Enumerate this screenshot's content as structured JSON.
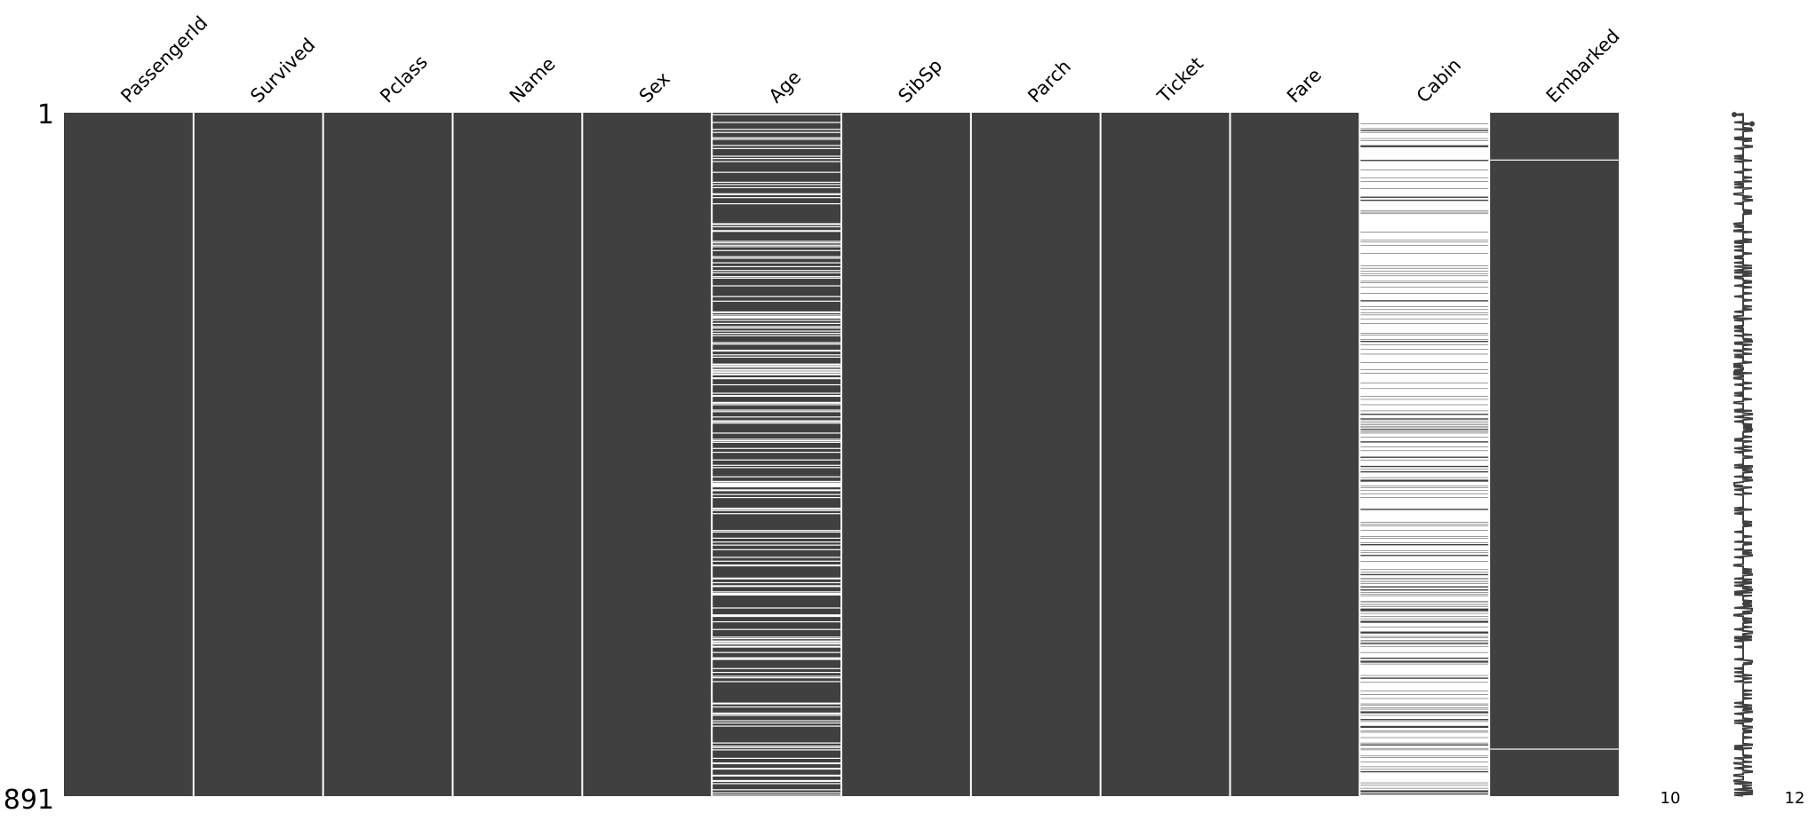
{
  "chart_data": {
    "type": "heatmap",
    "title": "",
    "columns": [
      "PassengerId",
      "Survived",
      "Pclass",
      "Name",
      "Sex",
      "Age",
      "SibSp",
      "Parch",
      "Ticket",
      "Fare",
      "Cabin",
      "Embarked"
    ],
    "row_labels": {
      "first": "1",
      "last": "891"
    },
    "n_rows": 891,
    "missing_counts": [
      0,
      0,
      0,
      0,
      0,
      177,
      0,
      0,
      0,
      0,
      687,
      2
    ],
    "missing_rows": {
      "Embarked": [
        62,
        830
      ]
    },
    "completeness_sparkline": {
      "min_label": "10",
      "max_label": "12",
      "min": 10,
      "max": 12
    },
    "colors": {
      "present": "#404040",
      "missing": "#ffffff",
      "background": "#ffffff"
    },
    "legend": "none",
    "grid": false
  }
}
